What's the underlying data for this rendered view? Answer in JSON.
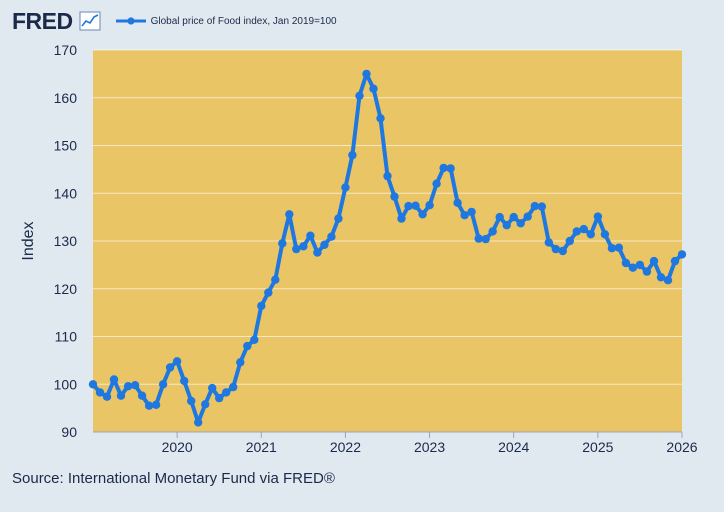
{
  "header": {
    "logo_text": "FRED",
    "logo_icon": "line-chart-icon"
  },
  "source": "Source: International Monetary Fund via FRED®",
  "colors": {
    "background": "#e1e9f0",
    "plot_area": "#eac566",
    "series": "#1f77e0",
    "text": "#1b2a4a"
  },
  "chart_data": {
    "type": "line",
    "title": "",
    "xlabel": "",
    "ylabel": "Index",
    "legend": [
      "Global price of Food index, Jan 2019=100"
    ],
    "ylim": [
      90,
      170
    ],
    "yticks": [
      90,
      100,
      110,
      120,
      130,
      140,
      150,
      160,
      170
    ],
    "xlim": [
      2019.0,
      2026.0
    ],
    "xticks": [
      2020,
      2021,
      2022,
      2023,
      2024,
      2025,
      2026
    ],
    "series": [
      {
        "name": "Global price of Food index, Jan 2019=100",
        "start": "2019-01",
        "frequency": "monthly",
        "values": [
          100.0,
          98.3,
          97.4,
          101.0,
          97.6,
          99.6,
          99.8,
          97.6,
          95.5,
          95.7,
          100.0,
          103.5,
          104.8,
          100.7,
          96.5,
          92.0,
          95.8,
          99.2,
          97.1,
          98.3,
          99.4,
          104.6,
          108.0,
          109.3,
          116.4,
          119.2,
          121.9,
          129.5,
          135.6,
          128.3,
          128.9,
          131.1,
          127.6,
          129.2,
          130.9,
          134.7,
          141.2,
          148.0,
          160.4,
          165.0,
          161.9,
          155.7,
          143.6,
          139.3,
          134.7,
          137.3,
          137.4,
          135.6,
          137.5,
          142.0,
          145.3,
          145.2,
          138.0,
          135.4,
          136.1,
          130.5,
          130.4,
          132.0,
          135.0,
          133.3,
          135.0,
          133.7,
          135.1,
          137.3,
          137.2,
          129.7,
          128.3,
          127.9,
          130.0,
          132.0,
          132.5,
          131.4,
          135.1,
          131.4,
          128.5,
          128.6,
          125.4,
          124.4,
          125.0,
          123.6,
          125.8,
          122.4,
          121.8,
          125.8,
          127.2
        ]
      }
    ]
  }
}
